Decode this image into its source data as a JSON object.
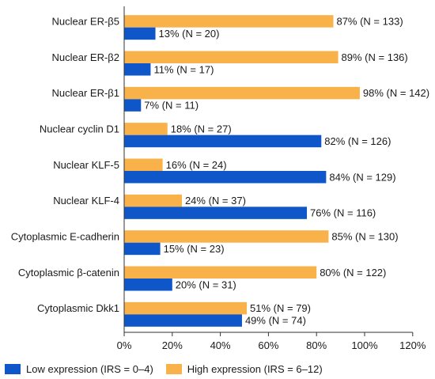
{
  "chart_data": {
    "type": "bar",
    "orientation": "horizontal",
    "categories": [
      "Nuclear ER-β5",
      "Nuclear ER-β2",
      "Nuclear ER-β1",
      "Nuclear cyclin D1",
      "Nuclear KLF-5",
      "Nuclear KLF-4",
      "Cytoplasmic E-cadherin",
      "Cytoplasmic β-catenin",
      "Cytoplasmic Dkk1"
    ],
    "series": [
      {
        "name": "High expression (IRS = 6–12)",
        "color": "#f9b24a",
        "values": [
          87,
          89,
          98,
          18,
          16,
          24,
          85,
          80,
          51
        ],
        "labels": [
          "87% (N = 133)",
          "89% (N = 136)",
          "98% (N = 142)",
          "18% (N = 27)",
          "16% (N = 24)",
          "24% (N = 37)",
          "85% (N = 130)",
          "80% (N = 122)",
          "51% (N = 79)"
        ]
      },
      {
        "name": "Low expression (IRS = 0–4)",
        "color": "#0f57c9",
        "values": [
          13,
          11,
          7,
          82,
          84,
          76,
          15,
          20,
          49
        ],
        "labels": [
          "13% (N = 20)",
          "11% (N = 17)",
          "7% (N = 11)",
          "82% (N = 126)",
          "84% (N = 129)",
          "76% (N = 116)",
          "15% (N = 23)",
          "20% (N = 31)",
          "49% (N = 74)"
        ]
      }
    ],
    "xlim": [
      0,
      120
    ],
    "xticks": [
      "0%",
      "20%",
      "40%",
      "60%",
      "80%",
      "100%",
      "120%"
    ],
    "grid": false,
    "legend_position": "bottom-left"
  },
  "legend": {
    "low_label": "Low expression (IRS = 0–4)",
    "high_label": "High expression (IRS = 6–12)",
    "low_color": "#0f57c9",
    "high_color": "#f9b24a"
  }
}
